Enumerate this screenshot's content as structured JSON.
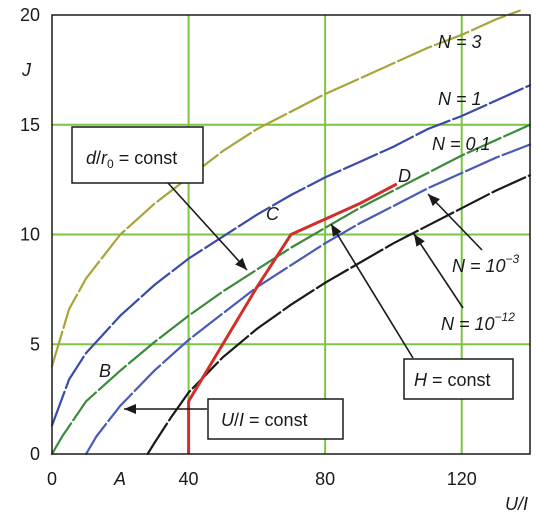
{
  "chart_data": {
    "type": "line",
    "xlabel": "U/I",
    "ylabel": "J",
    "xlim": [
      0,
      140
    ],
    "ylim": [
      0,
      20
    ],
    "xticks": [
      "0",
      "40",
      "80",
      "120"
    ],
    "yticks": [
      "0",
      "5",
      "10",
      "15",
      "20"
    ],
    "grid": true,
    "colors": {
      "grid": "#7cc444",
      "N3": "#a8a43a",
      "N1": "#3a4aa8",
      "N01": "#3b8a3a",
      "Nm3": "#4a5ab8",
      "Nm12": "#1a1a1a",
      "path": "#d0302c"
    },
    "series": [
      {
        "key": "N3",
        "name": "N = 3",
        "x": [
          0,
          5,
          10,
          20,
          30,
          40,
          50,
          60,
          70,
          80,
          90,
          100,
          110,
          120,
          130,
          137
        ],
        "y": [
          4.0,
          6.6,
          8.0,
          10.0,
          11.4,
          12.6,
          13.8,
          14.8,
          15.6,
          16.4,
          17.1,
          17.8,
          18.5,
          19.1,
          19.8,
          20.2
        ]
      },
      {
        "key": "N1",
        "name": "N = 1",
        "x": [
          0,
          5,
          10,
          20,
          30,
          40,
          50,
          60,
          70,
          80,
          90,
          100,
          110,
          120,
          130,
          140
        ],
        "y": [
          1.3,
          3.4,
          4.6,
          6.3,
          7.7,
          8.9,
          9.9,
          10.9,
          11.8,
          12.6,
          13.3,
          14.0,
          14.8,
          15.4,
          16.1,
          16.8
        ]
      },
      {
        "key": "N01",
        "name": "N = 0,1",
        "x": [
          0,
          3,
          10,
          20,
          30,
          40,
          50,
          60,
          70,
          80,
          90,
          100,
          110,
          120,
          130,
          140
        ],
        "y": [
          0,
          0.8,
          2.4,
          3.8,
          5.1,
          6.3,
          7.4,
          8.4,
          9.4,
          10.3,
          11.2,
          12.0,
          12.8,
          13.6,
          14.3,
          15.0
        ]
      },
      {
        "key": "Nm3",
        "name": "N = 10−3",
        "x": [
          10,
          13,
          20,
          30,
          40,
          50,
          60,
          70,
          80,
          90,
          100,
          110,
          120,
          130,
          140
        ],
        "y": [
          0,
          0.8,
          2.2,
          3.8,
          5.2,
          6.4,
          7.6,
          8.6,
          9.6,
          10.5,
          11.3,
          12.1,
          12.8,
          13.5,
          14.1
        ]
      },
      {
        "key": "Nm12",
        "name": "N = 10−12",
        "x": [
          28,
          30,
          35,
          40,
          50,
          60,
          70,
          80,
          90,
          100,
          110,
          120,
          130,
          140
        ],
        "y": [
          0,
          0.5,
          1.7,
          2.8,
          4.4,
          5.7,
          6.8,
          7.8,
          8.7,
          9.6,
          10.4,
          11.2,
          12.0,
          12.7
        ]
      }
    ],
    "path": {
      "x": [
        40,
        40,
        60,
        70,
        80,
        90,
        101
      ],
      "y": [
        0,
        2.4,
        7.6,
        10,
        10.7,
        11.4,
        12.3
      ]
    },
    "annotations": {
      "n3": "N = 3",
      "n1": "N = 1",
      "n01": "N = 0,1",
      "nm3_base": "N = 10",
      "nm3_exp": "−3",
      "nm12_base": "N = 10",
      "nm12_exp": "−12",
      "d_r0_d": "d",
      "d_r0_slash": "/",
      "d_r0_r": "r",
      "d_r0_sub": "0",
      "d_r0_rest": " = const",
      "h_const_h": "H",
      "h_const_rest": " = const",
      "ui_const_u": "U",
      "ui_const_slash": "/",
      "ui_const_i": "I",
      "ui_const_rest": " = const",
      "pt_a": "A",
      "pt_b": "B",
      "pt_c": "C",
      "pt_d": "D"
    }
  }
}
